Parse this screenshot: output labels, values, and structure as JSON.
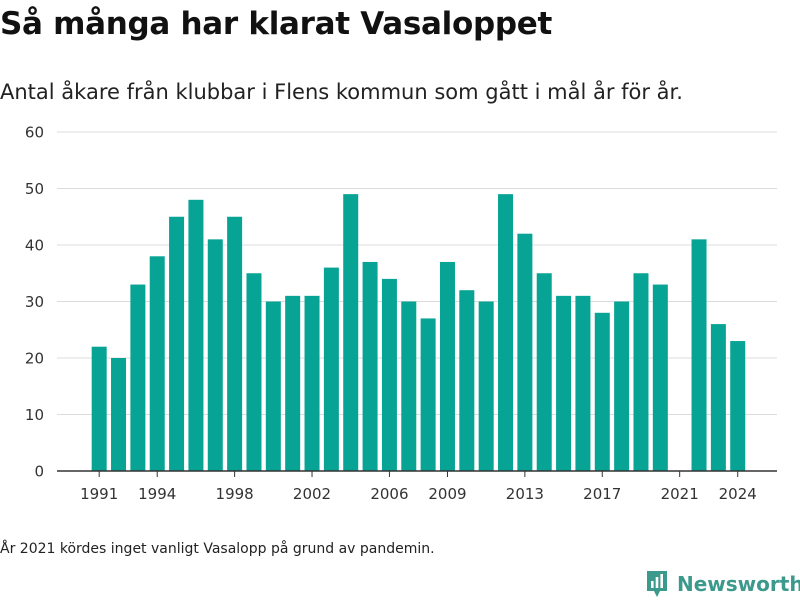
{
  "header": {
    "title": "Så många har klarat Vasaloppet",
    "subtitle": "Antal åkare från klubbar i Flens kommun som gått i mål år för år."
  },
  "footnote": "År 2021 kördes inget vanligt Vasalopp på grund av pandemin.",
  "brand": {
    "name": "Newsworthy",
    "icon": "newsworthy-logo-icon",
    "color": "#3c9a8c"
  },
  "colors": {
    "bar": "#07a394",
    "grid": "#dcdcdc",
    "axis": "#333333"
  },
  "chart_data": {
    "type": "bar",
    "title": "Så många har klarat Vasaloppet",
    "subtitle": "Antal åkare från klubbar i Flens kommun som gått i mål år för år.",
    "xlabel": "",
    "ylabel": "",
    "ylim": [
      0,
      60
    ],
    "y_ticks": [
      0,
      10,
      20,
      30,
      40,
      50,
      60
    ],
    "x_tick_labels": [
      1991,
      1994,
      1998,
      2002,
      2006,
      2009,
      2013,
      2017,
      2021,
      2024
    ],
    "grid": true,
    "legend": false,
    "categories": [
      1991,
      1992,
      1993,
      1994,
      1995,
      1996,
      1997,
      1998,
      1999,
      2000,
      2001,
      2002,
      2003,
      2004,
      2005,
      2006,
      2007,
      2008,
      2009,
      2010,
      2011,
      2012,
      2013,
      2014,
      2015,
      2016,
      2017,
      2018,
      2019,
      2020,
      2021,
      2022,
      2023,
      2024
    ],
    "values": [
      22,
      20,
      33,
      38,
      45,
      48,
      41,
      45,
      35,
      30,
      31,
      31,
      36,
      49,
      37,
      34,
      30,
      27,
      37,
      32,
      30,
      49,
      42,
      35,
      31,
      31,
      28,
      30,
      35,
      33,
      null,
      41,
      26,
      23
    ]
  }
}
